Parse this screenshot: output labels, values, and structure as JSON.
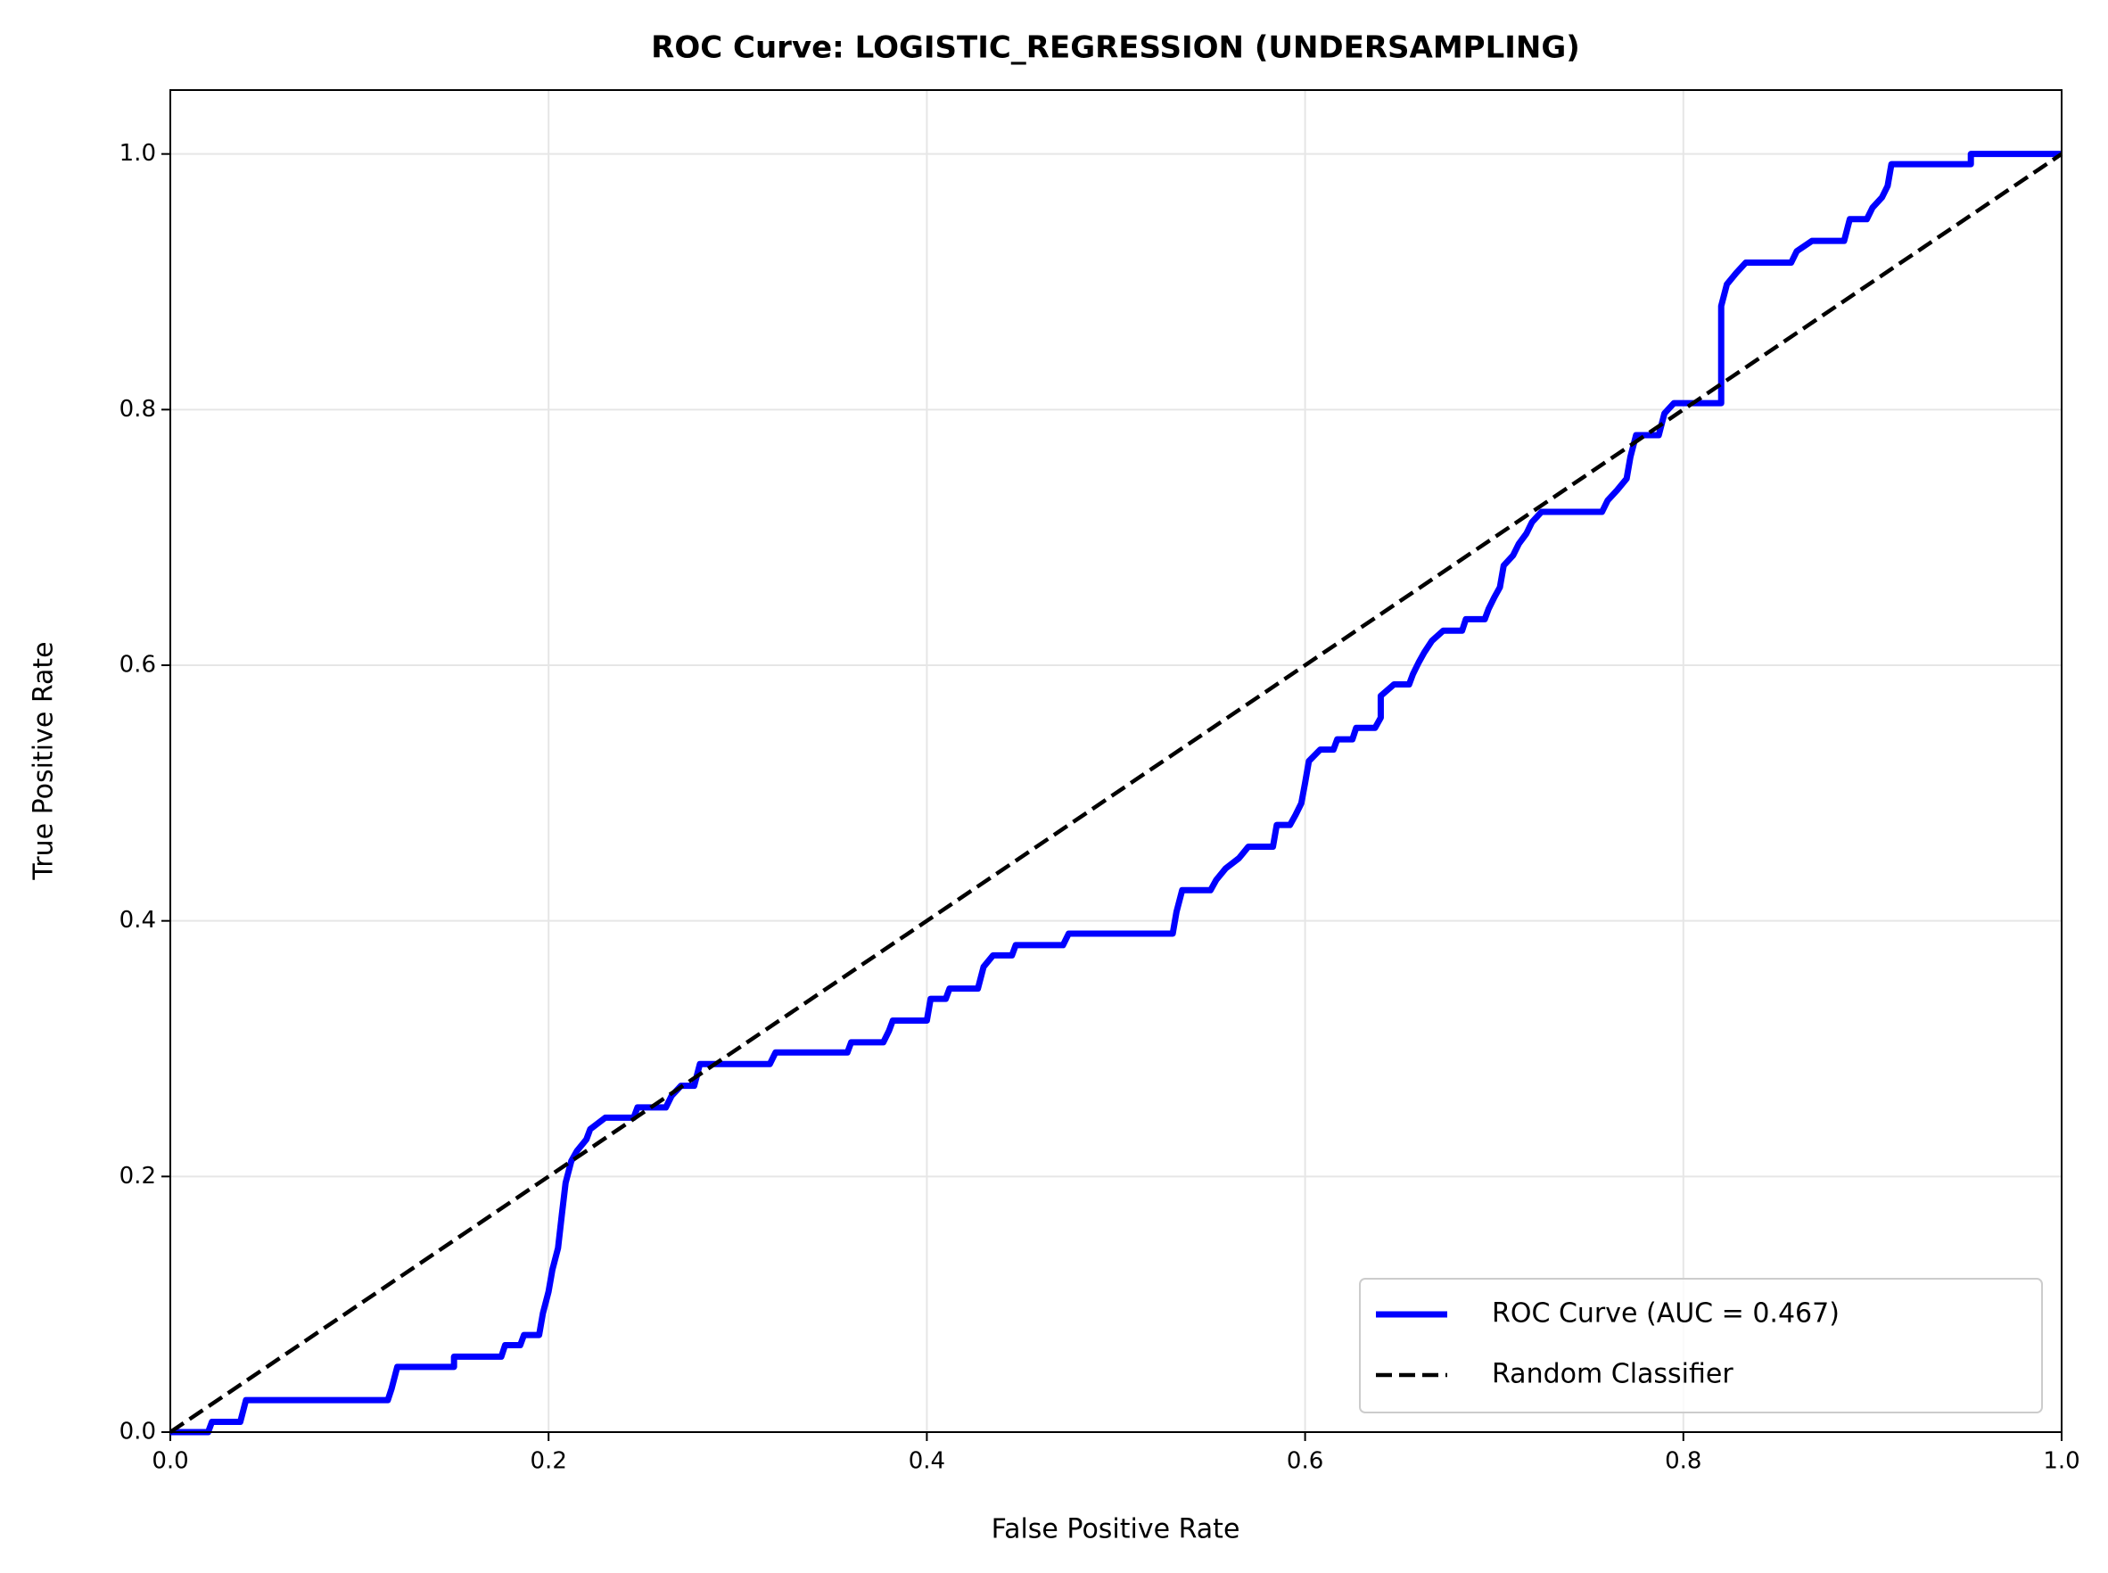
{
  "chart_data": {
    "type": "line",
    "title": "ROC Curve: LOGISTIC_REGRESSION (UNDERSAMPLING)",
    "xlabel": "False Positive Rate",
    "ylabel": "True Positive Rate",
    "xlim": [
      0,
      1
    ],
    "ylim": [
      0,
      1.05
    ],
    "xticks": [
      {
        "value": 0,
        "label": "0.0"
      },
      0.2,
      0.4,
      0.6,
      0.8,
      {
        "value": 1,
        "label": "1.0"
      }
    ],
    "yticks": [
      {
        "value": 0,
        "label": "0.0"
      },
      0.2,
      0.4,
      0.6,
      0.8,
      {
        "value": 1,
        "label": "1.0"
      }
    ],
    "grid": true,
    "legend": "lower right",
    "series": [
      {
        "name": "ROC Curve (AUC = 0.467)",
        "color": "#0000ff",
        "style": "solid",
        "x": [
          0,
          0.02,
          0.022,
          0.037,
          0.04,
          0.115,
          0.117,
          0.12,
          0.15,
          0.15,
          0.175,
          0.177,
          0.185,
          0.187,
          0.195,
          0.197,
          0.2,
          0.202,
          0.205,
          0.207,
          0.209,
          0.212,
          0.215,
          0.22,
          0.222,
          0.23,
          0.245,
          0.247,
          0.262,
          0.265,
          0.27,
          0.277,
          0.28,
          0.317,
          0.32,
          0.358,
          0.36,
          0.377,
          0.38,
          0.382,
          0.4,
          0.402,
          0.41,
          0.412,
          0.427,
          0.43,
          0.435,
          0.445,
          0.447,
          0.472,
          0.475,
          0.53,
          0.532,
          0.535,
          0.55,
          0.553,
          0.558,
          0.565,
          0.57,
          0.583,
          0.585,
          0.592,
          0.595,
          0.598,
          0.6,
          0.602,
          0.608,
          0.615,
          0.617,
          0.625,
          0.627,
          0.637,
          0.64,
          0.64,
          0.647,
          0.655,
          0.657,
          0.66,
          0.663,
          0.667,
          0.673,
          0.683,
          0.685,
          0.695,
          0.697,
          0.7,
          0.703,
          0.705,
          0.71,
          0.713,
          0.717,
          0.72,
          0.725,
          0.757,
          0.76,
          0.765,
          0.77,
          0.772,
          0.775,
          0.787,
          0.79,
          0.795,
          0.82,
          0.82,
          0.823,
          0.828,
          0.833,
          0.857,
          0.86,
          0.868,
          0.885,
          0.888,
          0.897,
          0.9,
          0.905,
          0.908,
          0.91,
          0.952,
          0.952,
          1.0
        ],
        "values": [
          0,
          0,
          0.008,
          0.008,
          0.025,
          0.025,
          0.034,
          0.051,
          0.051,
          0.059,
          0.059,
          0.068,
          0.068,
          0.076,
          0.076,
          0.093,
          0.11,
          0.127,
          0.144,
          0.17,
          0.195,
          0.212,
          0.22,
          0.229,
          0.237,
          0.246,
          0.246,
          0.254,
          0.254,
          0.263,
          0.271,
          0.271,
          0.288,
          0.288,
          0.297,
          0.297,
          0.305,
          0.305,
          0.314,
          0.322,
          0.322,
          0.339,
          0.339,
          0.347,
          0.347,
          0.364,
          0.373,
          0.373,
          0.381,
          0.381,
          0.39,
          0.39,
          0.407,
          0.424,
          0.424,
          0.432,
          0.441,
          0.449,
          0.458,
          0.458,
          0.475,
          0.475,
          0.483,
          0.492,
          0.508,
          0.525,
          0.534,
          0.534,
          0.542,
          0.542,
          0.551,
          0.551,
          0.559,
          0.576,
          0.585,
          0.585,
          0.593,
          0.602,
          0.61,
          0.619,
          0.627,
          0.627,
          0.636,
          0.636,
          0.644,
          0.653,
          0.661,
          0.678,
          0.686,
          0.695,
          0.703,
          0.712,
          0.72,
          0.72,
          0.729,
          0.737,
          0.746,
          0.763,
          0.78,
          0.78,
          0.797,
          0.805,
          0.805,
          0.881,
          0.898,
          0.907,
          0.915,
          0.915,
          0.924,
          0.932,
          0.932,
          0.949,
          0.949,
          0.958,
          0.966,
          0.975,
          0.992,
          0.992,
          1.0,
          1.0
        ]
      },
      {
        "name": "Random Classifier",
        "color": "#000000",
        "style": "dashed",
        "x": [
          0,
          1
        ],
        "values": [
          0,
          1
        ]
      }
    ]
  }
}
